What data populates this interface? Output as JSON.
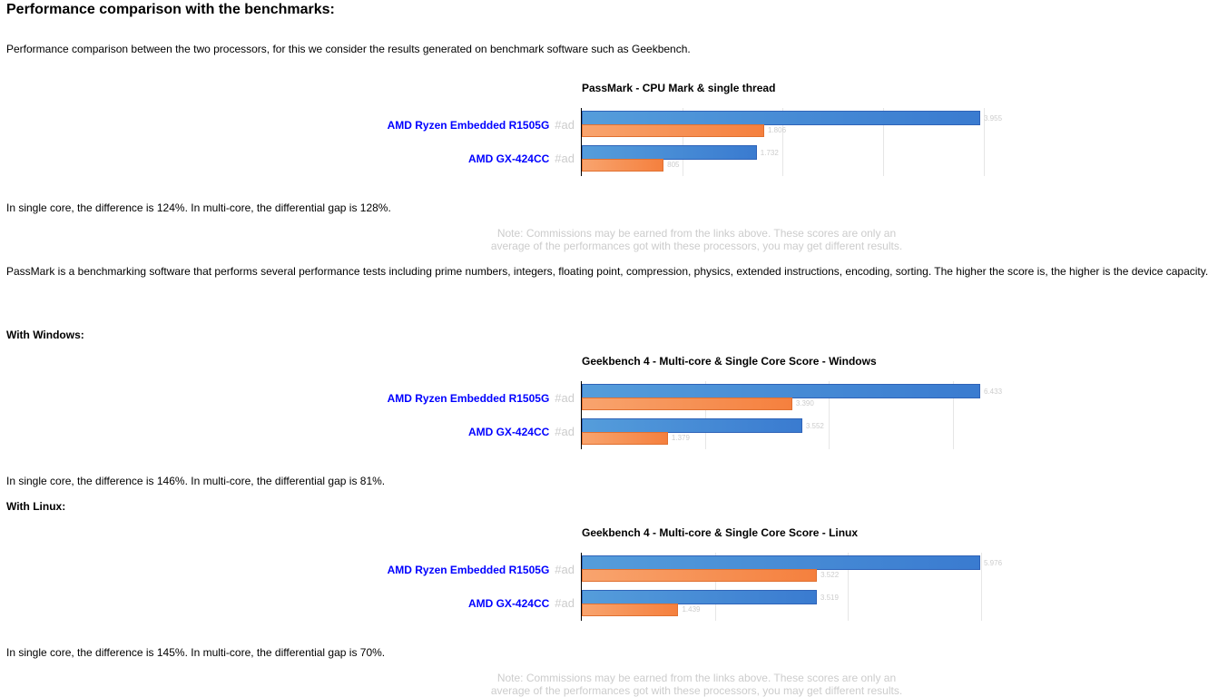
{
  "title": "Performance comparison with the benchmarks:",
  "intro": "Performance comparison between the two processors, for this we consider the results generated on benchmark software such as Geekbench.",
  "ad_tag": "#ad",
  "charts": [
    {
      "title": "PassMark - CPU Mark & single thread",
      "step": 1000,
      "rows": [
        {
          "name": "AMD Ryzen Embedded R1505G",
          "multi": 3955,
          "single": 1806
        },
        {
          "name": "AMD GX-424CC",
          "multi": 1732,
          "single": 805
        }
      ]
    },
    {
      "title": "Geekbench 4 - Multi-core & Single Core Score - Windows",
      "step": 2000,
      "rows": [
        {
          "name": "AMD Ryzen Embedded R1505G",
          "multi": 6433,
          "single": 3390
        },
        {
          "name": "AMD GX-424CC",
          "multi": 3552,
          "single": 1379
        }
      ]
    },
    {
      "title": "Geekbench 4 - Multi-core & Single Core Score - Linux",
      "step": 2000,
      "rows": [
        {
          "name": "AMD Ryzen Embedded R1505G",
          "multi": 5976,
          "single": 3522
        },
        {
          "name": "AMD GX-424CC",
          "multi": 3519,
          "single": 1439
        }
      ]
    }
  ],
  "diff1": "In single core, the difference is 124%. In multi-core, the differential gap is 128%.",
  "note_line1": "Note: Commissions may be earned from the links above. These scores are only an",
  "note_line2": "average of the performances got with these processors, you may get different results.",
  "passmark_desc": "PassMark is a benchmarking software that performs several performance tests including prime numbers, integers, floating point, compression, physics, extended instructions, encoding, sorting. The higher the score is, the higher is the device capacity.",
  "windows_heading": "With Windows:",
  "diff2": "In single core, the difference is 146%. In multi-core, the differential gap is 81%.",
  "linux_heading": "With Linux:",
  "diff3": "In single core, the difference is 145%. In multi-core, the differential gap is 70%."
}
